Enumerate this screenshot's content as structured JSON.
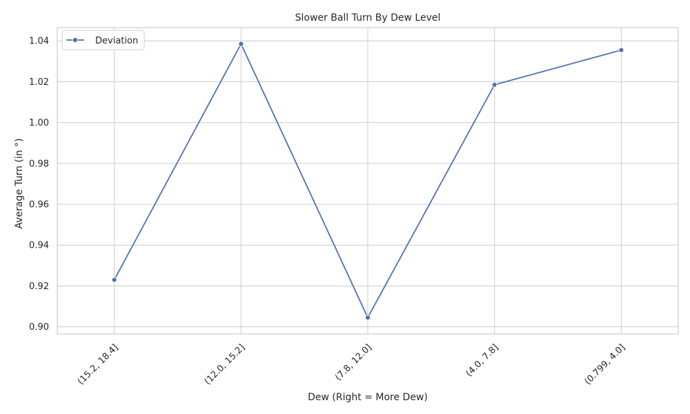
{
  "chart_data": {
    "type": "line",
    "title": "Slower Ball Turn By Dew Level",
    "xlabel": "Dew (Right = More Dew)",
    "ylabel": "Average Turn (in °)",
    "categories": [
      "(15.2, 18.4]",
      "(12.0, 15.2]",
      "(7.8, 12.0]",
      "(4.0, 7.8]",
      "(0.799, 4.0]"
    ],
    "series": [
      {
        "name": "Deviation",
        "values": [
          0.923,
          1.0385,
          0.9045,
          1.0185,
          1.0355
        ]
      }
    ],
    "ylim": [
      0.8965,
      1.0465
    ],
    "yticks": [
      "0.90",
      "0.92",
      "0.94",
      "0.96",
      "0.98",
      "1.00",
      "1.02",
      "1.04"
    ],
    "grid": true,
    "legend": "upper-left",
    "colors": {
      "line": "#4c72b0",
      "grid": "#cccccc",
      "spine": "#cccccc"
    }
  }
}
